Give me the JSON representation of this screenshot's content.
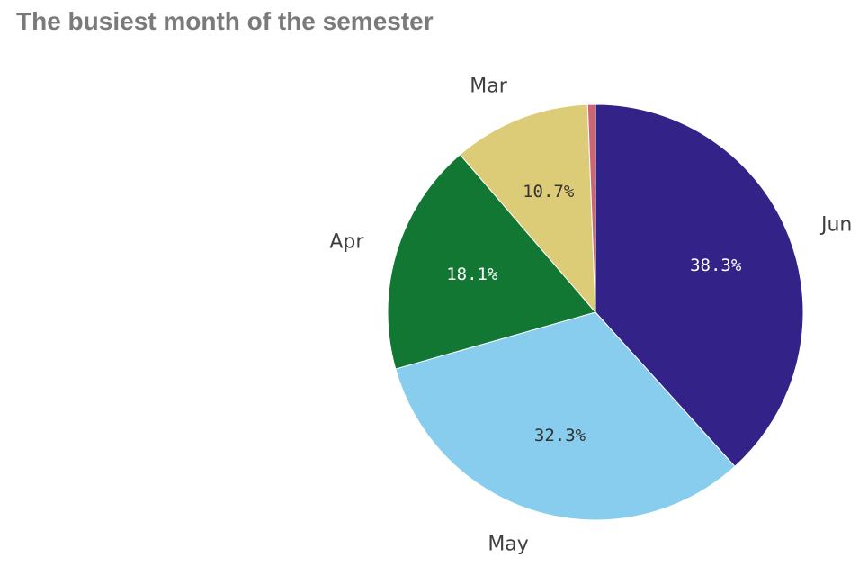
{
  "chart_data": {
    "type": "pie",
    "title": "The busiest month of the semester",
    "categories": [
      "Jun",
      "May",
      "Apr",
      "Mar",
      ""
    ],
    "values": [
      38.3,
      32.3,
      18.1,
      10.7,
      0.6
    ],
    "value_labels": [
      "38.3%",
      "32.3%",
      "18.1%",
      "10.7%",
      ""
    ],
    "colors": [
      "#332288",
      "#88ccee",
      "#117733",
      "#ddcc77",
      "#cc6677"
    ],
    "value_label_colors": [
      "#ffffff",
      "#333333",
      "#ffffff",
      "#333333",
      "#333333"
    ],
    "start_angle_deg": 0,
    "direction": "clockwise",
    "legend": "none"
  }
}
